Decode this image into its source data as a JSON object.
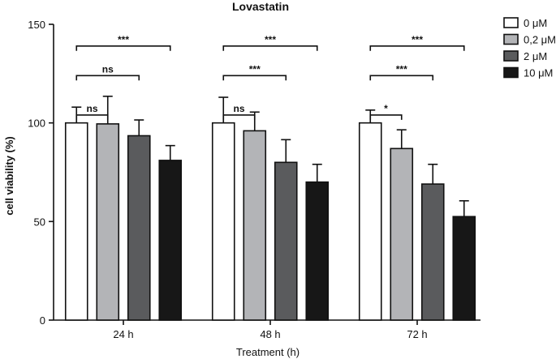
{
  "chart_data": {
    "type": "bar",
    "title": "Lovastatin",
    "xlabel": "Treatment (h)",
    "ylabel": "cell viability (%)",
    "ylim": [
      0,
      150
    ],
    "yticks": [
      0,
      50,
      100,
      150
    ],
    "categories": [
      "24 h",
      "48 h",
      "72 h"
    ],
    "series": [
      {
        "name": "0 μM",
        "color": "#ffffff",
        "values": [
          100,
          100,
          100
        ],
        "errors": [
          8,
          13,
          6.5
        ]
      },
      {
        "name": "0,2 μM",
        "color": "#b3b4b7",
        "values": [
          99.5,
          96,
          87
        ],
        "errors": [
          14,
          9.5,
          9.5
        ]
      },
      {
        "name": "2 μM",
        "color": "#5a5b5d",
        "values": [
          93.5,
          80,
          69
        ],
        "errors": [
          8,
          11.5,
          10
        ]
      },
      {
        "name": "10 μM",
        "color": "#171717",
        "values": [
          81,
          70,
          52.5
        ],
        "errors": [
          7.5,
          9,
          8
        ]
      }
    ],
    "significance": [
      {
        "category": "24 h",
        "from": 0,
        "to": 1,
        "level": 104,
        "label": "ns"
      },
      {
        "category": "24 h",
        "from": 0,
        "to": 2,
        "level": 124,
        "label": "ns"
      },
      {
        "category": "24 h",
        "from": 0,
        "to": 3,
        "level": 139,
        "label": "***"
      },
      {
        "category": "48 h",
        "from": 0,
        "to": 1,
        "level": 104,
        "label": "ns"
      },
      {
        "category": "48 h",
        "from": 0,
        "to": 2,
        "level": 124,
        "label": "***"
      },
      {
        "category": "48 h",
        "from": 0,
        "to": 3,
        "level": 139,
        "label": "***"
      },
      {
        "category": "72 h",
        "from": 0,
        "to": 1,
        "level": 104,
        "label": "*"
      },
      {
        "category": "72 h",
        "from": 0,
        "to": 2,
        "level": 124,
        "label": "***"
      },
      {
        "category": "72 h",
        "from": 0,
        "to": 3,
        "level": 139,
        "label": "***"
      }
    ],
    "legend_position": "top-right"
  }
}
